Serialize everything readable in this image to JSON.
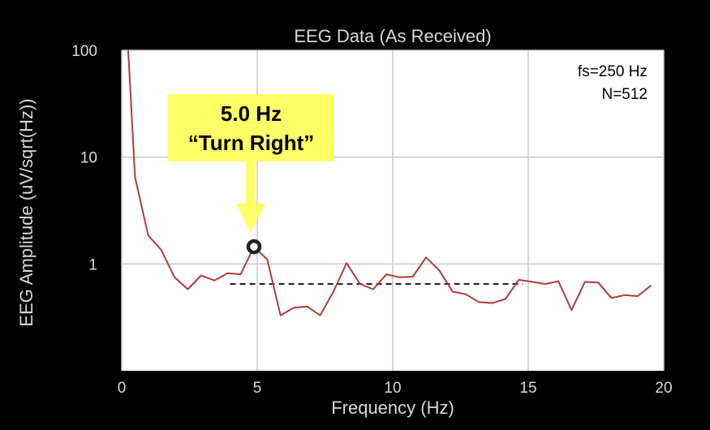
{
  "chart_data": {
    "type": "line",
    "title": "EEG Data (As Received)",
    "xlabel": "Frequency (Hz)",
    "ylabel": "EEG Amplitude (uV/sqrt(Hz))",
    "xlim": [
      0,
      20
    ],
    "ylim": [
      0.1,
      100
    ],
    "yscale": "log",
    "x_ticks": [
      0,
      5,
      10,
      15,
      20
    ],
    "x_tick_labels": [
      "0",
      "5",
      "10",
      "15",
      "20"
    ],
    "y_ticks": [
      1,
      10,
      100
    ],
    "y_tick_labels": [
      "1",
      "10",
      "100"
    ],
    "grid": true,
    "info_lines": [
      "fs=250 Hz",
      "N=512"
    ],
    "series": [
      {
        "color": "#b23a3a",
        "x": [
          0.24,
          0.49,
          0.98,
          1.46,
          1.95,
          2.44,
          2.93,
          3.42,
          3.91,
          4.39,
          4.88,
          5.37,
          5.86,
          6.35,
          6.84,
          7.32,
          7.81,
          8.3,
          8.79,
          9.28,
          9.77,
          10.25,
          10.74,
          11.23,
          11.72,
          12.21,
          12.7,
          13.18,
          13.67,
          14.16,
          14.65,
          15.14,
          15.63,
          16.11,
          16.6,
          17.09,
          17.58,
          18.07,
          18.55,
          19.04,
          19.53
        ],
        "y": [
          100,
          6.5,
          1.85,
          1.35,
          0.75,
          0.58,
          0.78,
          0.7,
          0.82,
          0.8,
          1.45,
          1.1,
          0.33,
          0.39,
          0.4,
          0.33,
          0.55,
          1.02,
          0.65,
          0.58,
          0.8,
          0.75,
          0.76,
          1.15,
          0.87,
          0.55,
          0.52,
          0.44,
          0.43,
          0.47,
          0.71,
          0.68,
          0.65,
          0.69,
          0.37,
          0.68,
          0.67,
          0.48,
          0.51,
          0.5,
          0.63
        ]
      }
    ],
    "threshold": {
      "x": [
        4.0,
        14.8
      ],
      "y": 0.65,
      "style": "dashed",
      "color": "#222222"
    },
    "highlight": {
      "x": 4.88,
      "y": 1.45
    },
    "annotation": {
      "lines": [
        "5.0 Hz",
        "“Turn Right”"
      ],
      "color": "#ffff66",
      "target_x": 4.88
    }
  }
}
